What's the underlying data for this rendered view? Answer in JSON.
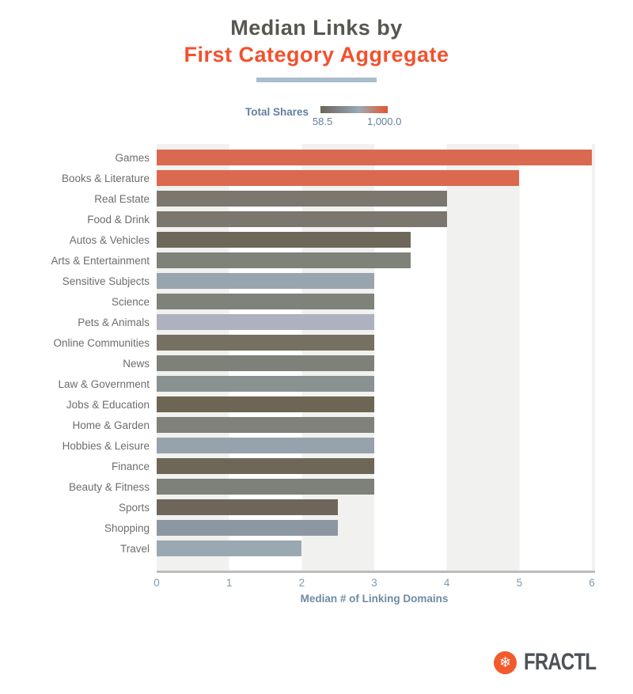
{
  "title": {
    "line1": "Median Links by",
    "line2": "First Category Aggregate"
  },
  "legend": {
    "label": "Total Shares",
    "min_label": "58.5",
    "max_label": "1,000.0",
    "gradient_colors": [
      "#6b665c",
      "#9babb8",
      "#e25335"
    ]
  },
  "chart_data": {
    "type": "bar",
    "orientation": "horizontal",
    "title": "Median Links by First Category Aggregate",
    "xlabel": "Median # of Linking Domains",
    "ylabel": "",
    "xlim": [
      0,
      6
    ],
    "x_ticks": [
      0,
      1,
      2,
      3,
      4,
      5,
      6
    ],
    "grid": "alternating vertical bands",
    "legend_position": "top-center",
    "color_encoding": "Total Shares (58.5 to 1,000.0; dark gray = low, blue-gray = mid, orange = high)",
    "categories": [
      "Games",
      "Books & Literature",
      "Real Estate",
      "Food & Drink",
      "Autos & Vehicles",
      "Arts & Entertainment",
      "Sensitive Subjects",
      "Science",
      "Pets & Animals",
      "Online Communities",
      "News",
      "Law & Government",
      "Jobs & Education",
      "Home & Garden",
      "Hobbies & Leisure",
      "Finance",
      "Beauty & Fitness",
      "Sports",
      "Shopping",
      "Travel"
    ],
    "values": [
      6,
      5,
      4,
      4,
      3.5,
      3.5,
      3,
      3,
      3,
      3,
      3,
      3,
      3,
      3,
      3,
      3,
      3,
      2.5,
      2.5,
      2
    ],
    "bar_colors": [
      "#d96951",
      "#da6950",
      "#7b776e",
      "#7b776e",
      "#6e685b",
      "#7f8279",
      "#99a5ae",
      "#7f827a",
      "#aeb1bf",
      "#767063",
      "#7e817a",
      "#899290",
      "#6e6654",
      "#7f817a",
      "#96a3ad",
      "#6e6757",
      "#7e8179",
      "#6e665a",
      "#8d97a1",
      "#9aa8b1"
    ]
  },
  "footer": {
    "brand": "FRACTL",
    "logo_icon": "snowflake-icon",
    "brand_color": "#f25a2b"
  },
  "colors": {
    "title_primary": "#57564f",
    "title_accent": "#f2512d",
    "underline": "#a9bdca",
    "axis_text": "#6f8aa4",
    "band_gray": "#f1f1ef",
    "axis_line": "#bcbcbc"
  }
}
